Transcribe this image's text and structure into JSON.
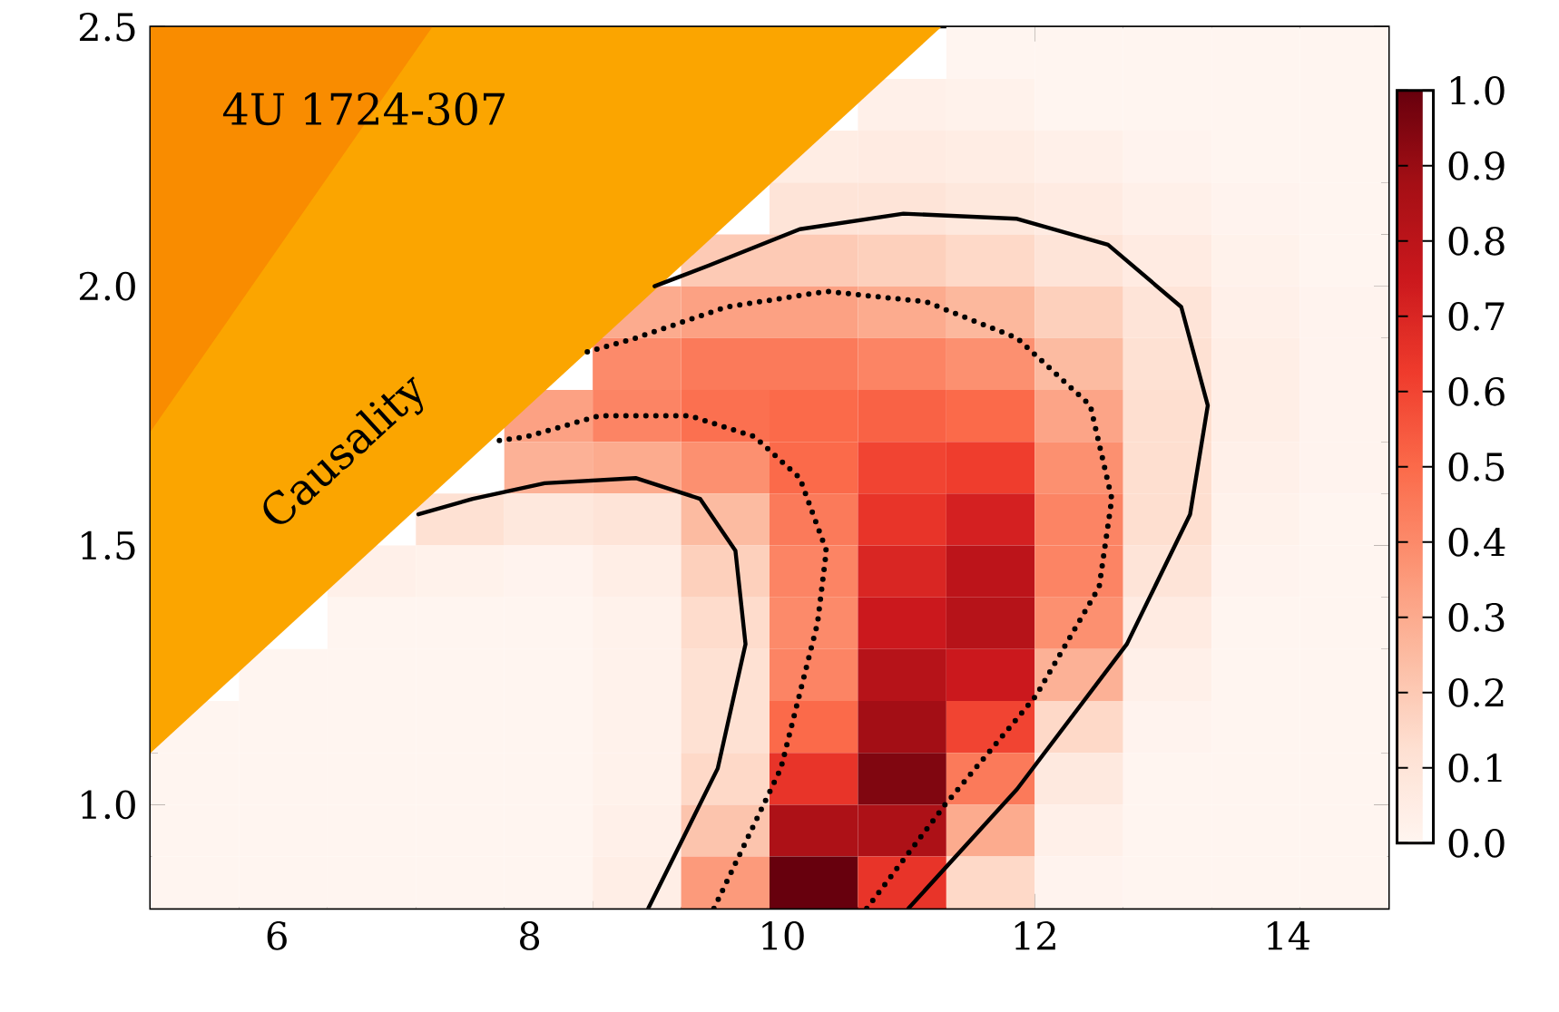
{
  "chart_data": {
    "type": "heatmap",
    "cells": [
      [
        null,
        null,
        null,
        null,
        null,
        null,
        null,
        null,
        null,
        0,
        0,
        0,
        0,
        0
      ],
      [
        null,
        null,
        null,
        null,
        null,
        null,
        null,
        null,
        0.03,
        0.02,
        0,
        0,
        0,
        0
      ],
      [
        null,
        null,
        null,
        null,
        null,
        null,
        null,
        0.05,
        0.06,
        0.05,
        0.03,
        0.01,
        0,
        0
      ],
      [
        null,
        null,
        null,
        null,
        null,
        null,
        null,
        0.1,
        0.1,
        0.08,
        0.06,
        0.03,
        0.01,
        0
      ],
      [
        null,
        null,
        null,
        null,
        null,
        null,
        0.2,
        0.2,
        0.18,
        0.15,
        0.1,
        0.06,
        0.02,
        0
      ],
      [
        null,
        null,
        null,
        null,
        null,
        0.3,
        0.33,
        0.33,
        0.3,
        0.26,
        0.18,
        0.1,
        0.03,
        0.01
      ],
      [
        null,
        null,
        null,
        null,
        null,
        0.4,
        0.45,
        0.45,
        0.42,
        0.38,
        0.25,
        0.12,
        0.04,
        0.01
      ],
      [
        null,
        null,
        null,
        null,
        0.33,
        0.42,
        0.48,
        0.5,
        0.52,
        0.5,
        0.32,
        0.13,
        0.04,
        0.01
      ],
      [
        null,
        null,
        null,
        null,
        0.28,
        0.3,
        0.38,
        0.5,
        0.6,
        0.62,
        0.38,
        0.13,
        0.03,
        0.01
      ],
      [
        null,
        null,
        null,
        0.12,
        0.08,
        0.1,
        0.25,
        0.45,
        0.65,
        0.72,
        0.42,
        0.13,
        0.02,
        0
      ],
      [
        null,
        null,
        0.03,
        0.02,
        0.01,
        0.04,
        0.18,
        0.42,
        0.7,
        0.8,
        0.42,
        0.1,
        0.01,
        0
      ],
      [
        null,
        null,
        0,
        0,
        0,
        0.02,
        0.14,
        0.4,
        0.75,
        0.82,
        0.38,
        0.06,
        0,
        0
      ],
      [
        null,
        0,
        0,
        0,
        0,
        0.02,
        0.12,
        0.42,
        0.82,
        0.75,
        0.28,
        0.03,
        0,
        0
      ],
      [
        0,
        0,
        0,
        0,
        0,
        0.02,
        0.12,
        0.5,
        0.88,
        0.6,
        0.15,
        0.01,
        0,
        0
      ],
      [
        0,
        0,
        0,
        0,
        0,
        0.02,
        0.15,
        0.65,
        0.95,
        0.45,
        0.07,
        0,
        0,
        0
      ],
      [
        0,
        0,
        0,
        0,
        0,
        0.03,
        0.22,
        0.85,
        0.85,
        0.3,
        0.03,
        0,
        0,
        0
      ],
      [
        0,
        0,
        0,
        0,
        0,
        0.04,
        0.35,
        1.0,
        0.65,
        0.15,
        0.01,
        0,
        0,
        0
      ]
    ],
    "clim": [
      0,
      1
    ],
    "cticks": [
      {
        "value": 0,
        "label": "0.0"
      },
      {
        "value": 0.1,
        "label": "0.1"
      },
      {
        "value": 0.2,
        "label": "0.2"
      },
      {
        "value": 0.3,
        "label": "0.3"
      },
      {
        "value": 0.4,
        "label": "0.4"
      },
      {
        "value": 0.5,
        "label": "0.5"
      },
      {
        "value": 0.6,
        "label": "0.6"
      },
      {
        "value": 0.7,
        "label": "0.7"
      },
      {
        "value": 0.8,
        "label": "0.8"
      },
      {
        "value": 0.9,
        "label": "0.9"
      },
      {
        "value": 1.0,
        "label": "1.0"
      }
    ],
    "xlim": [
      5,
      14.8
    ],
    "ylim": [
      0.8,
      2.5
    ],
    "xticks": [
      6,
      8,
      10,
      12,
      14
    ],
    "yticks": [
      {
        "value": 1.0,
        "label": "1.0"
      },
      {
        "value": 1.5,
        "label": "1.5"
      },
      {
        "value": 2.0,
        "label": "2.0"
      },
      {
        "value": 2.5,
        "label": "2.5"
      }
    ],
    "grid": false,
    "series": [
      {
        "type": "area",
        "color": "#fba500",
        "x": [
          5,
          11.26
        ],
        "values": [
          1.1,
          2.5
        ]
      },
      {
        "type": "area",
        "color": "#f98c00",
        "x": [
          5,
          7.23
        ],
        "values": [
          1.72,
          2.5
        ]
      },
      {
        "type": "line",
        "color": "#000000",
        "line_style": "solid",
        "x": [
          8.94,
          9.49,
          9.71,
          9.63,
          9.35,
          8.84,
          8.12,
          7.55,
          7.12
        ],
        "values": [
          0.8,
          1.07,
          1.31,
          1.49,
          1.59,
          1.63,
          1.62,
          1.59,
          1.56
        ]
      },
      {
        "type": "line",
        "color": "#000000",
        "line_style": "dotted",
        "x": [
          9.46,
          9.99,
          10.28,
          10.35,
          10.14,
          9.78,
          9.27,
          8.55,
          7.98,
          7.69
        ],
        "values": [
          0.8,
          1.07,
          1.35,
          1.49,
          1.63,
          1.71,
          1.75,
          1.75,
          1.71,
          1.7
        ]
      },
      {
        "type": "line",
        "color": "#000000",
        "line_style": "dotted",
        "x": [
          10.67,
          11.29,
          12.01,
          12.51,
          12.61,
          12.44,
          11.86,
          11.14,
          10.35,
          9.56,
          8.84,
          8.41
        ],
        "values": [
          0.8,
          1.0,
          1.21,
          1.42,
          1.59,
          1.77,
          1.9,
          1.97,
          1.99,
          1.96,
          1.9,
          1.87
        ]
      },
      {
        "type": "line",
        "color": "#000000",
        "line_style": "solid",
        "x": [
          11.0,
          11.86,
          12.73,
          13.23,
          13.37,
          13.16,
          12.58,
          11.86,
          10.96,
          10.14,
          9.42,
          8.99
        ],
        "values": [
          0.8,
          1.03,
          1.31,
          1.56,
          1.77,
          1.96,
          2.08,
          2.13,
          2.14,
          2.11,
          2.04,
          2.0
        ]
      }
    ],
    "annotations": [
      "4U 1724-307",
      "Causality"
    ]
  }
}
